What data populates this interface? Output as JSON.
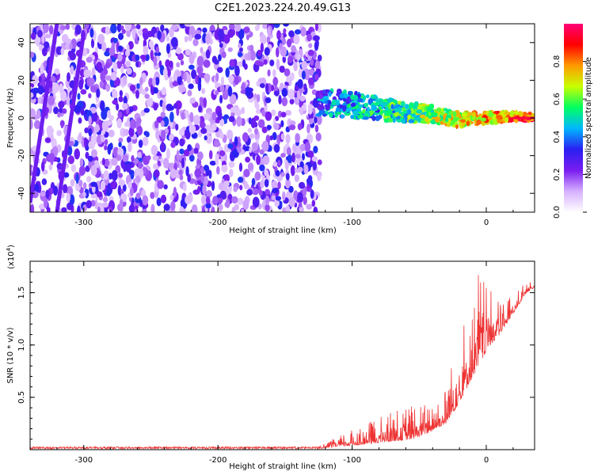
{
  "title": "C2E1.2023.224.20.49.G13",
  "chart_data": [
    {
      "type": "heatmap",
      "xlabel": "Height of straight line (km)",
      "ylabel": "Frequency (Hz)",
      "xlim": [
        -340,
        36
      ],
      "ylim": [
        -50,
        50
      ],
      "xticks": [
        -300,
        -200,
        -100,
        0
      ],
      "yticks": [
        -40,
        -20,
        0,
        20,
        40
      ],
      "colorbar": {
        "label": "Normalized spectral amplitude",
        "range": [
          0.0,
          1.0
        ],
        "ticks": [
          0.0,
          0.2,
          0.4,
          0.6,
          0.8
        ],
        "colormap": [
          "#ffffff",
          "#d6b0ff",
          "#7a1df0",
          "#2a1ff2",
          "#00b7ff",
          "#00ff60",
          "#c8ff00",
          "#ff9a00",
          "#ff0000",
          "#ff0078"
        ]
      },
      "features": {
        "noise_region_x": [
          -340,
          -124
        ],
        "signal_ridge": {
          "x": [
            -125,
            -100,
            -80,
            -60,
            -40,
            -20,
            0,
            20,
            36
          ],
          "y": [
            8,
            7,
            5,
            3,
            2,
            -1,
            0,
            1,
            0
          ],
          "peak_amplitude": 0.95
        },
        "diagonal_lines": [
          {
            "x": [
              -340,
              -320
            ],
            "y": [
              -45,
              50
            ]
          },
          {
            "x": [
              -320,
              -300
            ],
            "y": [
              -50,
              45
            ]
          }
        ]
      }
    },
    {
      "type": "line",
      "xlabel": "Height of straight line (km)",
      "ylabel": "SNR (10 * v/v)",
      "scale_label": "(x10",
      "scale_exp": "4",
      "scale_close": ")",
      "xlim": [
        -340,
        36
      ],
      "ylim": [
        0,
        1.8
      ],
      "xticks": [
        -300,
        -200,
        -100,
        0
      ],
      "yticks": [
        0.5,
        1.0,
        1.5
      ],
      "ytick_labels": [
        "0.5",
        "1.0",
        "1.5"
      ],
      "line_color": "#ee3333",
      "envelope": {
        "x": [
          -340,
          -125,
          -110,
          -90,
          -70,
          -55,
          -45,
          -30,
          -20,
          -10,
          -5,
          0,
          10,
          20,
          30,
          36
        ],
        "base": [
          0.01,
          0.01,
          0.03,
          0.05,
          0.08,
          0.1,
          0.15,
          0.25,
          0.45,
          0.7,
          0.8,
          0.95,
          1.1,
          1.3,
          1.5,
          1.55
        ],
        "spread": [
          0.02,
          0.02,
          0.1,
          0.2,
          0.3,
          0.35,
          0.3,
          0.35,
          0.7,
          0.8,
          1.0,
          0.6,
          0.35,
          0.2,
          0.1,
          0.05
        ]
      }
    }
  ]
}
